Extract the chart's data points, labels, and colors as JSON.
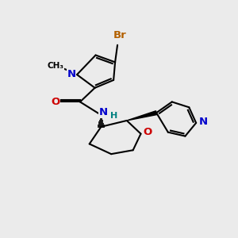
{
  "background_color": "#ebebeb",
  "atom_colors": {
    "C": "#000000",
    "N": "#0000cc",
    "O": "#cc0000",
    "Br": "#b36000",
    "H": "#008080"
  },
  "bond_color": "#000000",
  "bond_width": 1.5,
  "font_size_atoms": 9.5,
  "font_size_small": 8.0
}
